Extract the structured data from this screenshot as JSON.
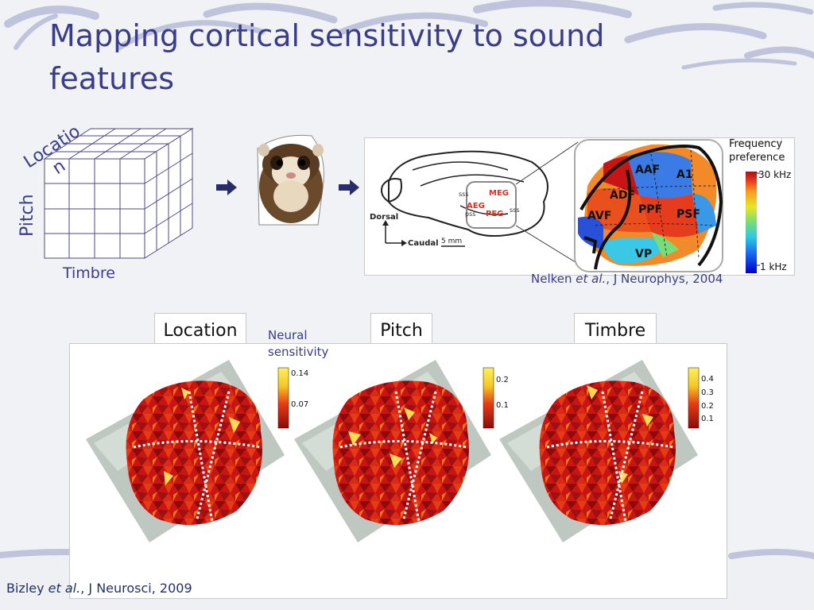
{
  "slide": {
    "title": "Mapping cortical sensitivity to sound features",
    "cube": {
      "location_label_line1": "Locatio",
      "location_label_line2": "n",
      "pitch_label": "Pitch",
      "timbre_label": "Timbre"
    },
    "brain_diagram": {
      "labels": {
        "sss_top": "sss",
        "meg": "MEG",
        "aeg": "AEG",
        "pss": "pss",
        "peg": "PEG",
        "sss_right": "sss",
        "dorsal": "Dorsal",
        "caudal": "Caudal",
        "scale": "5 mm"
      },
      "areas": [
        "AAF",
        "A1",
        "ADF",
        "PPF",
        "PSF",
        "AVF",
        "VP"
      ],
      "colorbar_title_line1": "Frequency",
      "colorbar_title_line2": "preference",
      "colorbar_max": "30 kHz",
      "colorbar_min": "1 kHz",
      "colors": [
        "#0000c8",
        "#1a6cf0",
        "#28c8e6",
        "#78dc78",
        "#e6e628",
        "#f5a01e",
        "#e6321e",
        "#a01414"
      ]
    },
    "citation_top": {
      "author": "Nelken ",
      "etal": "et al.",
      "rest": ", J Neurophys, 2004"
    },
    "maps": {
      "neural_label_line1": "Neural",
      "neural_label_line2": "sensitivity",
      "panels": [
        {
          "tab": "Location",
          "tick_high": "0.14",
          "tick_low": "0.07"
        },
        {
          "tab": "Pitch",
          "tick_high": "0.2",
          "tick_low": "0.1"
        },
        {
          "tab": "Timbre",
          "tick_1": "0.4",
          "tick_2": "0.3",
          "tick_3": "0.2",
          "tick_4": "0.1"
        }
      ],
      "heat_colors": [
        "#8b0a0a",
        "#c81414",
        "#e63c14",
        "#f07814",
        "#f5c828",
        "#fff05a"
      ]
    },
    "citation_bottom": {
      "author": "Bizley ",
      "etal": "et al.",
      "rest": ", J Neurosci, 2009"
    }
  }
}
